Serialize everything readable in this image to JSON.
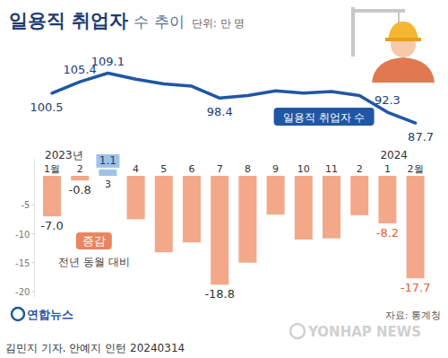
{
  "chart_data": {
    "type": "bar",
    "title": "일용직 취업자",
    "subtitle": "수 추이",
    "unit_label": "단위: 만 명",
    "categories": [
      "1월",
      "2",
      "3",
      "4",
      "5",
      "6",
      "7",
      "8",
      "9",
      "10",
      "11",
      "2",
      "1",
      "2월"
    ],
    "year_labels": [
      {
        "text": "2023년",
        "at": 0
      },
      {
        "text": "2024",
        "at": 12
      }
    ],
    "series": [
      {
        "name": "증감",
        "type": "bar",
        "values": [
          -7.0,
          -0.8,
          1.1,
          -7.5,
          -13.2,
          -11.5,
          -18.8,
          -15.0,
          -6.7,
          -11.0,
          -10.8,
          -6.8,
          -8.2,
          -17.7
        ],
        "value_labels": [
          "-7.0",
          "-0.8",
          "1.1",
          null,
          null,
          null,
          "-18.8",
          null,
          null,
          null,
          null,
          null,
          "-8.2",
          "-17.7"
        ],
        "colors": [
          "#f2a889",
          "#f2a889",
          "#9dc3e8",
          "#f2a889",
          "#f2a889",
          "#f2a889",
          "#f2a889",
          "#f2a889",
          "#f2a889",
          "#f2a889",
          "#f2a889",
          "#f2a889",
          "#f2a889",
          "#f2a889"
        ]
      },
      {
        "name": "일용직 취업자 수",
        "type": "line",
        "axis": "y2",
        "color": "#1f57a4",
        "marker": "none",
        "line_style": "solid",
        "values": [
          100.5,
          105.4,
          109.1,
          106.5,
          104.5,
          103.5,
          98.4,
          99.5,
          101.5,
          100.5,
          101.2,
          99.5,
          92.3,
          87.7
        ],
        "value_labels": [
          "100.5",
          "105.4",
          "109.1",
          null,
          null,
          null,
          "98.4",
          null,
          null,
          null,
          null,
          null,
          "92.3",
          "87.7"
        ]
      }
    ],
    "ylim": [
      -21,
      3
    ],
    "yticks": [
      -5,
      -10,
      -15,
      -20
    ],
    "y2lim": [
      80,
      112
    ],
    "y2ticks": [],
    "tick_labels": "y",
    "grid": false,
    "data_labels": true,
    "annotations": [
      {
        "text": "전년 동월 대비"
      }
    ],
    "source": "자료: 통계청",
    "credit": "김민지 기자. 안예지 인턴  20240314",
    "logo": "연합뉴스",
    "watermark": "YONHAP NEWS"
  }
}
